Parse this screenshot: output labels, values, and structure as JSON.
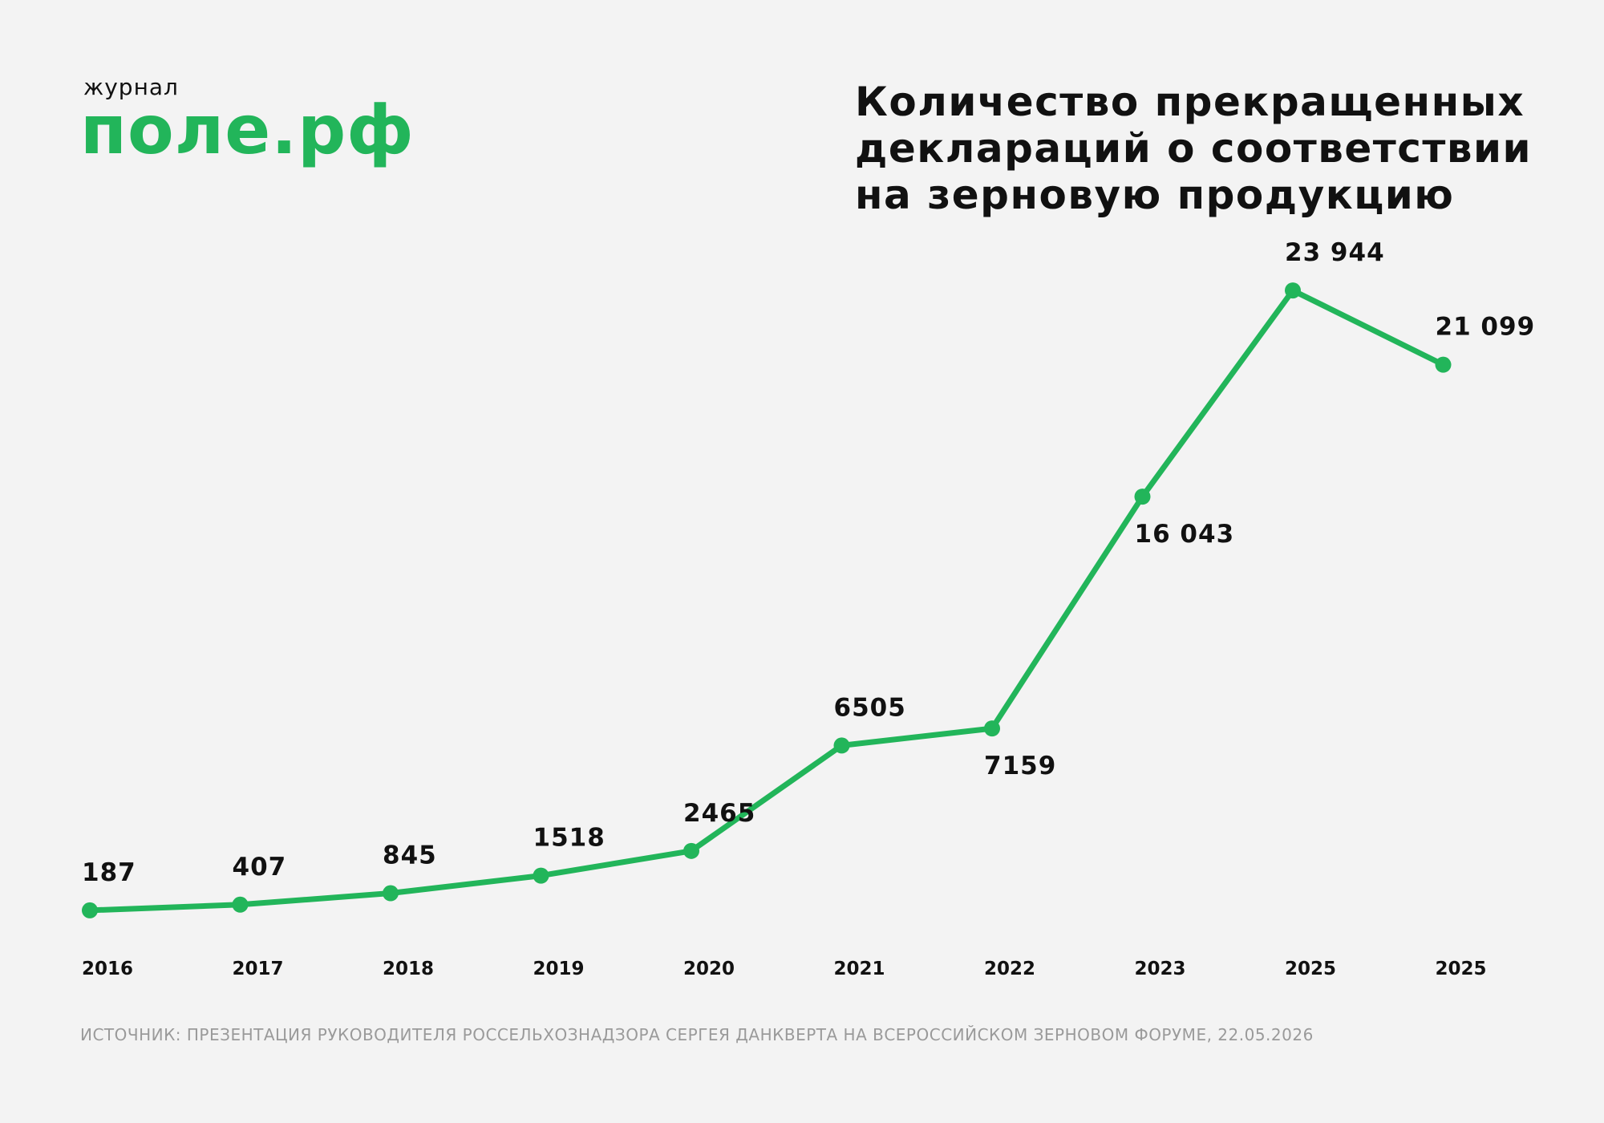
{
  "brand": {
    "prefix": "журнал",
    "name": "поле.рф"
  },
  "title_lines": [
    "Количество прекращенных",
    "деклараций о соответствии",
    "на зерновую продукцию"
  ],
  "source": "ИСТОЧНИК: ПРЕЗЕНТАЦИЯ РУКОВОДИТЕЛЯ РОССЕЛЬХОЗНАДЗОРА СЕРГЕЯ ДАНКВЕРТА НА ВСЕРОССИЙСКОМ ЗЕРНОВОМ ФОРУМЕ, 22.05.2026",
  "colors": {
    "accent": "#22b55a",
    "text": "#111111",
    "muted": "#9a9a9a",
    "background": "#f3f3f3"
  },
  "chart_data": {
    "type": "line",
    "title": "Количество прекращенных деклараций о соответствии на зерновую продукцию",
    "categories": [
      "2016",
      "2017",
      "2018",
      "2019",
      "2020",
      "2021",
      "2022",
      "2023",
      "2025",
      "2025"
    ],
    "series": [
      {
        "values": [
          187,
          407,
          845,
          1518,
          2465,
          6505,
          7159,
          16043,
          23944,
          21099
        ],
        "data_labels": [
          "187",
          "407",
          "845",
          "1518",
          "2465",
          "6505",
          "7159",
          "16 043",
          "23 944",
          "21 099"
        ],
        "label_sides": [
          "above",
          "above",
          "above",
          "above",
          "above",
          "above",
          "below",
          "below",
          "above",
          "above"
        ],
        "color": "#22b55a"
      }
    ],
    "ylim": [
      0,
      26000
    ],
    "grid": false,
    "legend": "none",
    "markers": true
  }
}
